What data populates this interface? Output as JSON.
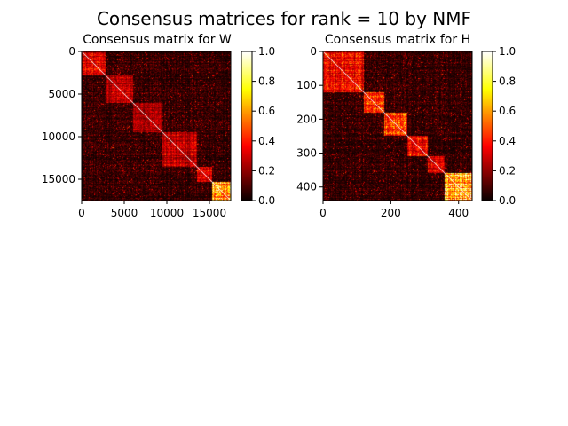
{
  "figure": {
    "title": "Consensus matrices for rank = 10 by NMF"
  },
  "chart_data": [
    {
      "type": "heatmap",
      "title": "Consensus matrix for W",
      "xlabel": "",
      "ylabel": "",
      "n": 17500,
      "xlim": [
        0,
        17500
      ],
      "ylim": [
        17500,
        0
      ],
      "x_ticks": [
        0,
        5000,
        10000,
        15000
      ],
      "y_ticks": [
        0,
        5000,
        10000,
        15000
      ],
      "x_tick_labels": [
        "0",
        "5000",
        "10000",
        "15000"
      ],
      "y_tick_labels": [
        "0",
        "5000",
        "10000",
        "15000"
      ],
      "colormap": "hot",
      "vmin": 0.0,
      "vmax": 1.0,
      "colorbar_ticks": [
        "0.0",
        "0.2",
        "0.4",
        "0.6",
        "0.8",
        "1.0"
      ],
      "diagonal_value": 1.0,
      "blocks": [
        {
          "start": 0,
          "end": 2800,
          "level": 0.35
        },
        {
          "start": 2800,
          "end": 6000,
          "level": 0.3
        },
        {
          "start": 6000,
          "end": 9500,
          "level": 0.25
        },
        {
          "start": 9500,
          "end": 13500,
          "level": 0.3
        },
        {
          "start": 13500,
          "end": 15300,
          "level": 0.35
        },
        {
          "start": 15300,
          "end": 17500,
          "level": 0.75
        }
      ]
    },
    {
      "type": "heatmap",
      "title": "Consensus matrix for H",
      "xlabel": "",
      "ylabel": "",
      "n": 440,
      "xlim": [
        0,
        440
      ],
      "ylim": [
        440,
        0
      ],
      "x_ticks": [
        0,
        200,
        400
      ],
      "y_ticks": [
        0,
        100,
        200,
        300,
        400
      ],
      "x_tick_labels": [
        "0",
        "200",
        "400"
      ],
      "y_tick_labels": [
        "0",
        "100",
        "200",
        "300",
        "400"
      ],
      "colormap": "hot",
      "vmin": 0.0,
      "vmax": 1.0,
      "colorbar_ticks": [
        "0.0",
        "0.2",
        "0.4",
        "0.6",
        "0.8",
        "1.0"
      ],
      "diagonal_value": 1.0,
      "blocks": [
        {
          "start": 0,
          "end": 120,
          "level": 0.4
        },
        {
          "start": 120,
          "end": 180,
          "level": 0.45
        },
        {
          "start": 180,
          "end": 250,
          "level": 0.5
        },
        {
          "start": 250,
          "end": 310,
          "level": 0.45
        },
        {
          "start": 310,
          "end": 360,
          "level": 0.35
        },
        {
          "start": 360,
          "end": 440,
          "level": 0.8
        }
      ]
    }
  ]
}
